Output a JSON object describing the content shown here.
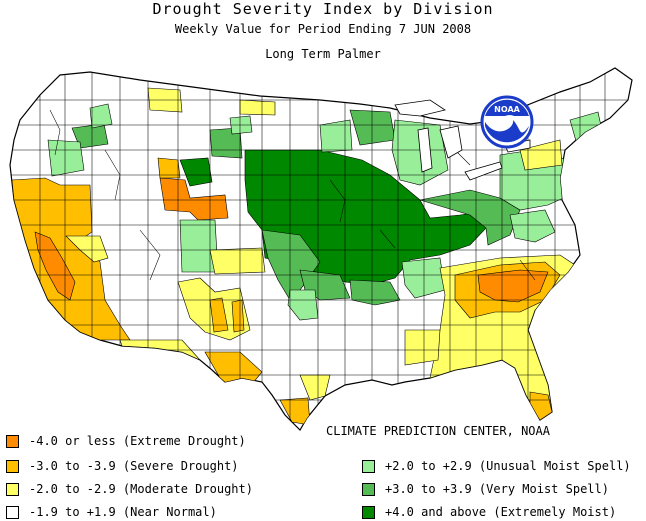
{
  "header": {
    "title": "Drought Severity Index by Division",
    "subtitle": "Weekly Value for Period Ending  7 JUN 2008",
    "index_name": "Long Term Palmer"
  },
  "logo": {
    "text": "NOAA",
    "icon": "noaa-logo-icon"
  },
  "credit": "CLIMATE PREDICTION CENTER, NOAA",
  "colors": {
    "extreme_drought": "#ff8c00",
    "severe_drought": "#ffbf00",
    "moderate_drought": "#ffff66",
    "near_normal": "#ffffff",
    "unusual_moist": "#99ee99",
    "very_moist": "#55bb55",
    "extremely_moist": "#008800",
    "border": "#000000",
    "noaa_blue": "#1a3cc8"
  },
  "legend": {
    "left": [
      {
        "label": "-4.0 or less (Extreme Drought)",
        "color": "#ff8c00"
      },
      {
        "label": "-3.0 to -3.9 (Severe Drought)",
        "color": "#ffbf00"
      },
      {
        "label": "-2.0 to -2.9 (Moderate Drought)",
        "color": "#ffff66"
      },
      {
        "label": "-1.9 to +1.9 (Near Normal)",
        "color": "#ffffff"
      }
    ],
    "right": [
      {
        "label": "+2.0 to +2.9 (Unusual Moist Spell)",
        "color": "#99ee99"
      },
      {
        "label": "+3.0 to +3.9 (Very Moist Spell)",
        "color": "#55bb55"
      },
      {
        "label": "+4.0 and above (Extremely Moist)",
        "color": "#008800"
      }
    ]
  }
}
